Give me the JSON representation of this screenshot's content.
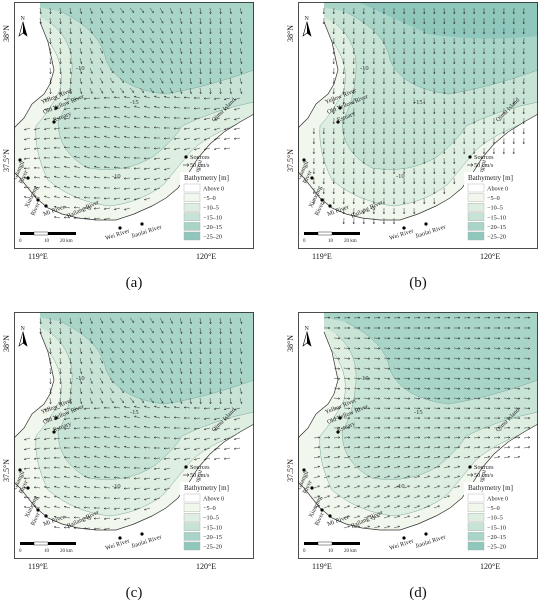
{
  "panels": [
    {
      "id": "a",
      "caption": "(a)",
      "deep_band": false,
      "flow": "mixed"
    },
    {
      "id": "b",
      "caption": "(b)",
      "deep_band": true,
      "flow": "south"
    },
    {
      "id": "c",
      "caption": "(c)",
      "deep_band": false,
      "flow": "mixed"
    },
    {
      "id": "d",
      "caption": "(d)",
      "deep_band": false,
      "flow": "east"
    }
  ],
  "axes": {
    "lat_top": "38°N",
    "lat_bottom": "37.5°N",
    "lon_left": "119°E",
    "lon_right": "120°E"
  },
  "north_label": "N",
  "contours": [
    "-10",
    "-15",
    "-10",
    "-5"
  ],
  "place_labels": {
    "yellow_river": "Yellow River",
    "old_yellow_river": "Old Yellow River",
    "estuary": "Estuary",
    "guangli_1": "Guangli",
    "guangli_2": "River",
    "xiaoqing_1": "Xiaoqing",
    "xiaoqing_2": "River",
    "mi_river": "Mi River",
    "bailang_river": "Bailang River",
    "wei_river": "Wei River",
    "jiaolai_river": "Jiaolai River",
    "diaolongzui": "Diaolongzui",
    "qimu_island": "Qimu Island"
  },
  "legend": {
    "sources": "Sources",
    "vector": "50 cm/s",
    "title": "Bathymetry [m]",
    "classes": [
      {
        "label": "Above 0",
        "color": "#ffffff"
      },
      {
        "label": "−5–0",
        "color": "#f1f7ec"
      },
      {
        "label": "−10–5",
        "color": "#deeee0"
      },
      {
        "label": "−15–10",
        "color": "#c6e3d6"
      },
      {
        "label": "−20–15",
        "color": "#a9d5c9"
      },
      {
        "label": "−25–20",
        "color": "#8fc7bc"
      }
    ]
  },
  "scale_bar": {
    "t0": "0",
    "t1": "10",
    "t2": "20 km"
  }
}
